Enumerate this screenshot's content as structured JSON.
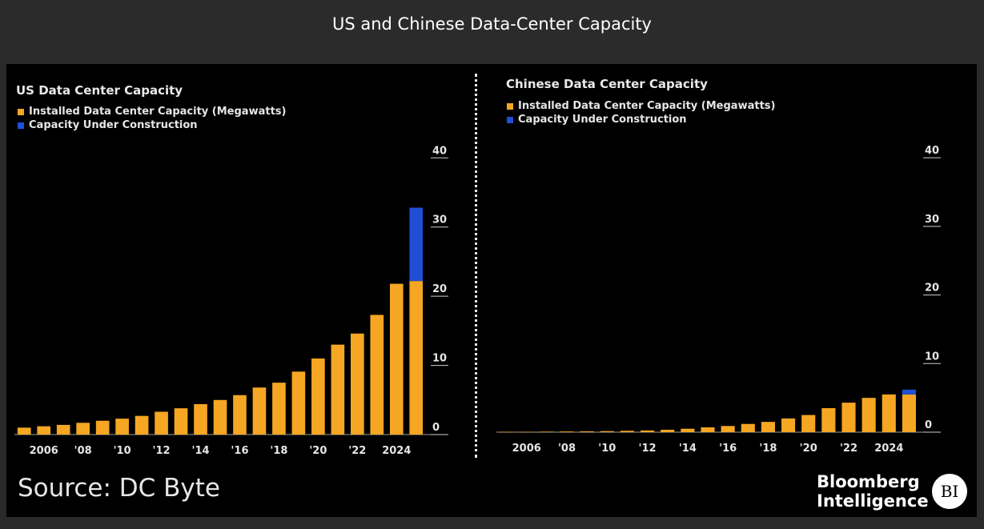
{
  "page": {
    "title": "US and Chinese Data-Center Capacity"
  },
  "footer": {
    "source": "Source: DC Byte",
    "brand_line1": "Bloomberg",
    "brand_line2": "Intelligence",
    "badge": "BI"
  },
  "colors": {
    "installed": "#f5a623",
    "construction": "#1f4fd6",
    "background": "#000000",
    "text": "#e6e6e6"
  },
  "chart_data": [
    {
      "type": "bar",
      "title": "US Data Center Capacity",
      "legend": [
        "Installed Data Center Capacity (Megawatts)",
        "Capacity Under Construction"
      ],
      "x": [
        2005,
        2006,
        2007,
        2008,
        2009,
        2010,
        2011,
        2012,
        2013,
        2014,
        2015,
        2016,
        2017,
        2018,
        2019,
        2020,
        2021,
        2022,
        2023,
        2024,
        2025
      ],
      "x_tick_labels": [
        {
          "x": 2006,
          "label": "2006"
        },
        {
          "x": 2008,
          "label": "'08"
        },
        {
          "x": 2010,
          "label": "'10"
        },
        {
          "x": 2012,
          "label": "'12"
        },
        {
          "x": 2014,
          "label": "'14"
        },
        {
          "x": 2016,
          "label": "'16"
        },
        {
          "x": 2018,
          "label": "'18"
        },
        {
          "x": 2020,
          "label": "'20"
        },
        {
          "x": 2022,
          "label": "'22"
        },
        {
          "x": 2024,
          "label": "2024"
        }
      ],
      "series": [
        {
          "name": "Installed Data Center Capacity (Megawatts)",
          "values": [
            1.0,
            1.2,
            1.4,
            1.7,
            2.0,
            2.3,
            2.7,
            3.3,
            3.8,
            4.4,
            5.0,
            5.7,
            6.8,
            7.5,
            9.1,
            11.0,
            13.0,
            14.6,
            17.3,
            21.8,
            22.2
          ]
        },
        {
          "name": "Capacity Under Construction",
          "values": [
            0,
            0,
            0,
            0,
            0,
            0,
            0,
            0,
            0,
            0,
            0,
            0,
            0,
            0,
            0,
            0,
            0,
            0,
            0,
            0,
            10.6
          ]
        }
      ],
      "y_ticks": [
        0,
        10,
        20,
        30,
        40
      ],
      "ylim": [
        0,
        42
      ],
      "stacked": true
    },
    {
      "type": "bar",
      "title": "Chinese Data Center Capacity",
      "legend": [
        "Installed Data Center Capacity (Megawatts)",
        "Capacity Under Construction"
      ],
      "x": [
        2005,
        2006,
        2007,
        2008,
        2009,
        2010,
        2011,
        2012,
        2013,
        2014,
        2015,
        2016,
        2017,
        2018,
        2019,
        2020,
        2021,
        2022,
        2023,
        2024,
        2025
      ],
      "x_tick_labels": [
        {
          "x": 2006,
          "label": "2006"
        },
        {
          "x": 2008,
          "label": "'08"
        },
        {
          "x": 2010,
          "label": "'10"
        },
        {
          "x": 2012,
          "label": "'12"
        },
        {
          "x": 2014,
          "label": "'14"
        },
        {
          "x": 2016,
          "label": "'16"
        },
        {
          "x": 2018,
          "label": "'18"
        },
        {
          "x": 2020,
          "label": "'20"
        },
        {
          "x": 2022,
          "label": "'22"
        },
        {
          "x": 2024,
          "label": "2024"
        }
      ],
      "series": [
        {
          "name": "Installed Data Center Capacity (Megawatts)",
          "values": [
            0.05,
            0.05,
            0.08,
            0.1,
            0.12,
            0.15,
            0.2,
            0.25,
            0.35,
            0.5,
            0.7,
            0.9,
            1.2,
            1.5,
            2.0,
            2.5,
            3.5,
            4.3,
            5.0,
            5.5,
            5.5
          ]
        },
        {
          "name": "Capacity Under Construction",
          "values": [
            0,
            0,
            0,
            0,
            0,
            0,
            0,
            0,
            0,
            0,
            0,
            0,
            0,
            0,
            0,
            0,
            0,
            0,
            0,
            0,
            0.7
          ]
        }
      ],
      "y_ticks": [
        0,
        10,
        20,
        30,
        40
      ],
      "ylim": [
        0,
        42
      ],
      "stacked": true
    }
  ]
}
